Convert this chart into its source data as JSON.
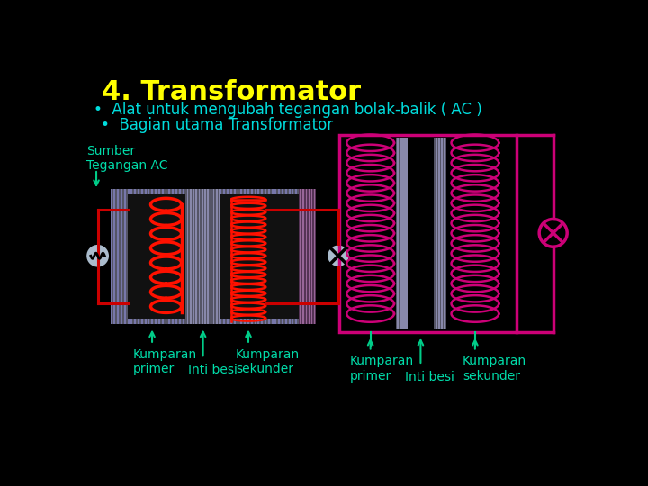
{
  "background_color": "#000000",
  "title": "4. Transformator",
  "title_color": "#ffff00",
  "title_fontsize": 22,
  "bullet1": "•  Alat untuk mengubah tegangan bolak-balik ( AC )",
  "bullet2": "•  Bagian utama Transformator",
  "bullet_color": "#00dddd",
  "bullet_fontsize": 12,
  "label_color": "#00ddaa",
  "sumber_label": "Sumber\nTegangan AC",
  "label_fontsize": 10,
  "kumparan_primer_left": "Kumparan\nprimer",
  "kumparan_sekunder_left": "Kumparan\nsekunder",
  "inti_besi_left": "Inti besi",
  "kumparan_primer_right": "Kumparan\nprimer",
  "kumparan_sekunder_right": "Kumparan\nsekunder",
  "inti_besi_right": "Inti besi",
  "coil_color_left": "#ff1100",
  "coil_color_right": "#cc0077",
  "circuit_color": "#cc0077",
  "wire_color": "#cc0000",
  "arrow_color": "#00cc88",
  "iron_stripe_bg": "#555566",
  "iron_stripe_fg": "#888899",
  "left_frame_bg": "#444444",
  "left_core_bg": "#000000"
}
